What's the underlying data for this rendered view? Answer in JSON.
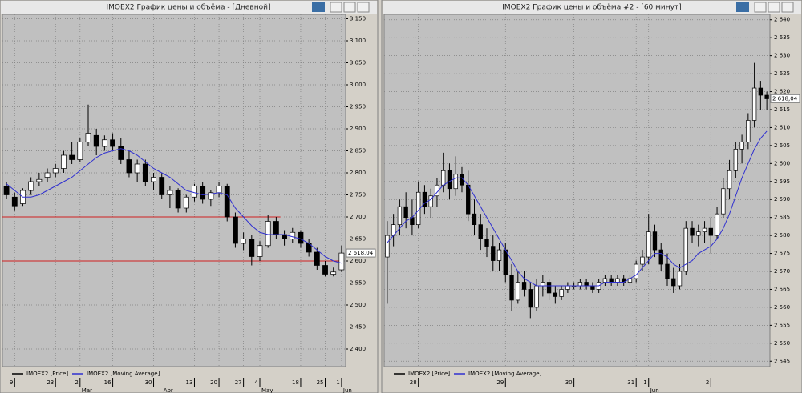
{
  "chart_data": [
    {
      "type": "candlestick",
      "title": "IMOEX2 График цены и объёма - [Дневной]",
      "grid": true,
      "categories": [
        null,
        "9",
        null,
        null,
        null,
        null,
        "23",
        null,
        null,
        "2",
        null,
        null,
        null,
        "16",
        null,
        null,
        null,
        null,
        "30",
        null,
        null,
        null,
        null,
        "13",
        null,
        null,
        "20",
        null,
        null,
        "27",
        null,
        "4",
        null,
        null,
        null,
        null,
        "18",
        null,
        null,
        "25",
        null,
        "1"
      ],
      "months": [
        null,
        null,
        null,
        null,
        null,
        null,
        null,
        null,
        null,
        "Mar",
        null,
        null,
        null,
        null,
        null,
        null,
        null,
        null,
        null,
        "Apr",
        null,
        null,
        null,
        null,
        null,
        null,
        null,
        null,
        null,
        null,
        null,
        "May",
        null,
        null,
        null,
        null,
        null,
        null,
        null,
        null,
        null,
        "Jun"
      ],
      "series": [
        {
          "name": "IMOEX2 [Price]",
          "color": "#000000",
          "open": [
            2770,
            2745,
            2730,
            2760,
            2780,
            2790,
            2800,
            2810,
            2840,
            2830,
            2870,
            2885,
            2860,
            2875,
            2860,
            2830,
            2800,
            2820,
            2780,
            2790,
            2750,
            2760,
            2720,
            2745,
            2770,
            2740,
            2755,
            2770,
            2700,
            2640,
            2650,
            2610,
            2635,
            2690,
            2660,
            2650,
            2665,
            2640,
            2620,
            2590,
            2570,
            2580
          ],
          "high": [
            2780,
            2755,
            2765,
            2790,
            2800,
            2810,
            2820,
            2850,
            2870,
            2880,
            2955,
            2900,
            2885,
            2890,
            2880,
            2850,
            2830,
            2830,
            2800,
            2800,
            2770,
            2765,
            2750,
            2775,
            2780,
            2760,
            2780,
            2775,
            2710,
            2665,
            2660,
            2645,
            2705,
            2700,
            2670,
            2675,
            2670,
            2650,
            2630,
            2600,
            2585,
            2635
          ],
          "low": [
            2740,
            2715,
            2725,
            2750,
            2770,
            2780,
            2790,
            2800,
            2820,
            2825,
            2860,
            2840,
            2850,
            2850,
            2820,
            2790,
            2780,
            2770,
            2760,
            2740,
            2720,
            2710,
            2710,
            2735,
            2730,
            2725,
            2745,
            2690,
            2630,
            2625,
            2590,
            2600,
            2630,
            2650,
            2635,
            2640,
            2630,
            2610,
            2580,
            2565,
            2565,
            2575
          ],
          "close": [
            2750,
            2725,
            2760,
            2780,
            2785,
            2800,
            2810,
            2840,
            2830,
            2870,
            2890,
            2860,
            2875,
            2860,
            2830,
            2800,
            2820,
            2780,
            2790,
            2750,
            2760,
            2720,
            2745,
            2770,
            2740,
            2755,
            2770,
            2700,
            2640,
            2650,
            2610,
            2635,
            2690,
            2660,
            2650,
            2665,
            2640,
            2620,
            2590,
            2570,
            2575,
            2618
          ]
        },
        {
          "name": "IMOEX2 [Moving Average]",
          "color": "#3030d0",
          "values": [
            2775,
            2760,
            2745,
            2745,
            2750,
            2760,
            2770,
            2780,
            2790,
            2805,
            2820,
            2835,
            2845,
            2850,
            2855,
            2850,
            2840,
            2825,
            2810,
            2800,
            2790,
            2775,
            2760,
            2755,
            2750,
            2752,
            2755,
            2750,
            2720,
            2700,
            2680,
            2665,
            2660,
            2660,
            2660,
            2655,
            2650,
            2640,
            2625,
            2610,
            2600,
            2595
          ]
        }
      ],
      "levels": [
        2700,
        2600
      ],
      "level_color": "#d02020",
      "last_price": {
        "value": 2618.04,
        "label": "2 618,04"
      },
      "ylim": [
        2360,
        3160
      ],
      "yticks": [
        {
          "value": 2400,
          "label": "2 400"
        },
        {
          "value": 2450,
          "label": "2 450"
        },
        {
          "value": 2500,
          "label": "2 500"
        },
        {
          "value": 2550,
          "label": "2 550"
        },
        {
          "value": 2600,
          "label": "2 600"
        },
        {
          "value": 2650,
          "label": "2 650"
        },
        {
          "value": 2700,
          "label": "2 700"
        },
        {
          "value": 2750,
          "label": "2 750"
        },
        {
          "value": 2800,
          "label": "2 800"
        },
        {
          "value": 2850,
          "label": "2 850"
        },
        {
          "value": 2900,
          "label": "2 900"
        },
        {
          "value": 2950,
          "label": "2 950"
        },
        {
          "value": 3000,
          "label": "3 000"
        },
        {
          "value": 3050,
          "label": "3 050"
        },
        {
          "value": 3100,
          "label": "3 100"
        },
        {
          "value": 3150,
          "label": "3 150"
        }
      ]
    },
    {
      "type": "candlestick",
      "title": "IMOEX2 График цены и объёма #2 - [60 минут]",
      "grid": true,
      "categories": [
        null,
        null,
        null,
        null,
        null,
        "28",
        null,
        null,
        null,
        null,
        null,
        null,
        null,
        null,
        null,
        null,
        null,
        null,
        null,
        "29",
        null,
        null,
        null,
        null,
        null,
        null,
        null,
        null,
        null,
        null,
        "30",
        null,
        null,
        null,
        null,
        null,
        null,
        null,
        null,
        null,
        "31",
        null,
        "1",
        null,
        null,
        null,
        null,
        null,
        null,
        null,
        null,
        null,
        "2",
        null,
        null,
        null,
        null,
        null,
        null,
        null,
        null,
        null
      ],
      "months": [
        null,
        null,
        null,
        null,
        null,
        null,
        null,
        null,
        null,
        null,
        null,
        null,
        null,
        null,
        null,
        null,
        null,
        null,
        null,
        null,
        null,
        null,
        null,
        null,
        null,
        null,
        null,
        null,
        null,
        null,
        null,
        null,
        null,
        null,
        null,
        null,
        null,
        null,
        null,
        null,
        null,
        null,
        "Jun",
        null,
        null,
        null,
        null,
        null,
        null,
        null,
        null,
        null,
        null,
        null,
        null,
        null,
        null,
        null,
        null,
        null,
        null,
        null
      ],
      "series": [
        {
          "name": "IMOEX2 [Price]",
          "color": "#000000",
          "open": [
            2574,
            2580,
            2583,
            2588,
            2585,
            2583,
            2592,
            2588,
            2591,
            2594,
            2598,
            2593,
            2597,
            2594,
            2586,
            2583,
            2579,
            2577,
            2573,
            2576,
            2569,
            2562,
            2567,
            2565,
            2560,
            2566,
            2567,
            2564,
            2563,
            2565,
            2566,
            2566,
            2567,
            2566,
            2565,
            2567,
            2568,
            2567,
            2568,
            2567,
            2568,
            2572,
            2574,
            2581,
            2576,
            2572,
            2568,
            2566,
            2570,
            2582,
            2580,
            2581,
            2582,
            2580,
            2586,
            2593,
            2598,
            2604,
            2606,
            2612,
            2621,
            2619
          ],
          "high": [
            2584,
            2586,
            2590,
            2592,
            2590,
            2595,
            2594,
            2593,
            2596,
            2603,
            2600,
            2602,
            2599,
            2598,
            2590,
            2586,
            2582,
            2580,
            2578,
            2578,
            2572,
            2570,
            2570,
            2567,
            2568,
            2569,
            2568,
            2566,
            2566,
            2567,
            2567,
            2568,
            2568,
            2567,
            2568,
            2569,
            2569,
            2569,
            2569,
            2569,
            2573,
            2576,
            2586,
            2583,
            2578,
            2575,
            2571,
            2572,
            2584,
            2584,
            2583,
            2584,
            2585,
            2588,
            2596,
            2601,
            2606,
            2608,
            2614,
            2628,
            2623,
            2620
          ],
          "low": [
            2561,
            2577,
            2580,
            2582,
            2580,
            2582,
            2586,
            2585,
            2588,
            2592,
            2590,
            2591,
            2592,
            2584,
            2580,
            2576,
            2574,
            2570,
            2570,
            2567,
            2559,
            2561,
            2563,
            2557,
            2559,
            2563,
            2562,
            2561,
            2562,
            2564,
            2565,
            2565,
            2565,
            2564,
            2564,
            2566,
            2566,
            2566,
            2566,
            2566,
            2567,
            2570,
            2572,
            2574,
            2570,
            2566,
            2564,
            2565,
            2569,
            2578,
            2577,
            2578,
            2575,
            2579,
            2585,
            2590,
            2596,
            2600,
            2604,
            2610,
            2615,
            2615
          ],
          "close": [
            2580,
            2583,
            2588,
            2585,
            2583,
            2592,
            2588,
            2591,
            2594,
            2598,
            2593,
            2597,
            2594,
            2586,
            2583,
            2579,
            2577,
            2573,
            2576,
            2569,
            2562,
            2567,
            2565,
            2560,
            2566,
            2567,
            2564,
            2563,
            2565,
            2566,
            2566,
            2567,
            2566,
            2565,
            2567,
            2568,
            2567,
            2568,
            2567,
            2568,
            2572,
            2574,
            2581,
            2576,
            2572,
            2568,
            2566,
            2570,
            2582,
            2580,
            2581,
            2582,
            2580,
            2586,
            2593,
            2598,
            2604,
            2606,
            2612,
            2621,
            2619,
            2618
          ]
        },
        {
          "name": "IMOEX2 [Moving Average]",
          "color": "#3030d0",
          "values": [
            2578,
            2580,
            2582,
            2584,
            2585,
            2587,
            2589,
            2590,
            2592,
            2594,
            2595,
            2596,
            2596,
            2594,
            2591,
            2588,
            2585,
            2582,
            2579,
            2576,
            2573,
            2570,
            2568,
            2567,
            2566,
            2566,
            2566,
            2566,
            2566,
            2566,
            2566,
            2566,
            2566,
            2566,
            2566,
            2567,
            2567,
            2567,
            2567,
            2568,
            2569,
            2571,
            2573,
            2575,
            2575,
            2574,
            2572,
            2571,
            2572,
            2573,
            2575,
            2576,
            2577,
            2579,
            2582,
            2586,
            2591,
            2596,
            2600,
            2604,
            2607,
            2609
          ]
        }
      ],
      "last_price": {
        "value": 2618.04,
        "label": "2 618,04"
      },
      "ylim": [
        2543.5,
        2641.5
      ],
      "yticks": [
        {
          "value": 2545,
          "label": "2 545"
        },
        {
          "value": 2550,
          "label": "2 550"
        },
        {
          "value": 2555,
          "label": "2 555"
        },
        {
          "value": 2560,
          "label": "2 560"
        },
        {
          "value": 2565,
          "label": "2 565"
        },
        {
          "value": 2570,
          "label": "2 570"
        },
        {
          "value": 2575,
          "label": "2 575"
        },
        {
          "value": 2580,
          "label": "2 580"
        },
        {
          "value": 2585,
          "label": "2 585"
        },
        {
          "value": 2590,
          "label": "2 590"
        },
        {
          "value": 2595,
          "label": "2 595"
        },
        {
          "value": 2600,
          "label": "2 600"
        },
        {
          "value": 2605,
          "label": "2 605"
        },
        {
          "value": 2610,
          "label": "2 610"
        },
        {
          "value": 2615,
          "label": "2 615"
        },
        {
          "value": 2620,
          "label": "2 620"
        },
        {
          "value": 2625,
          "label": "2 625"
        },
        {
          "value": 2630,
          "label": "2 630"
        },
        {
          "value": 2635,
          "label": "2 635"
        },
        {
          "value": 2640,
          "label": "2 640"
        }
      ]
    }
  ]
}
